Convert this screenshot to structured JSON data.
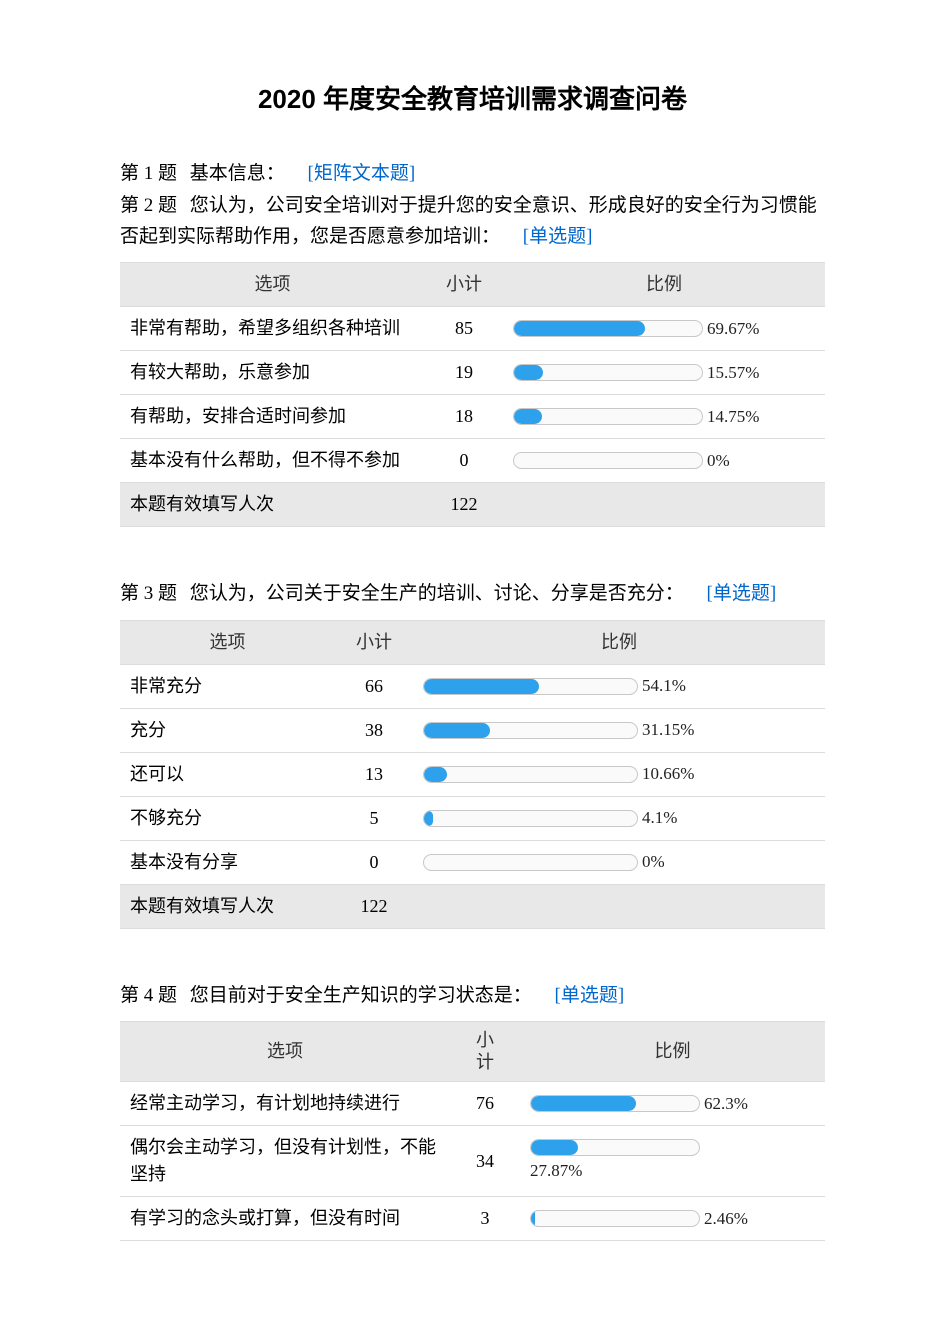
{
  "title": "2020 年度安全教育培训需求调查问卷",
  "type_link_color": "#0066cc",
  "bar_color": "#2ea1ed",
  "bar_track_bg": "#fafafa",
  "bar_border": "#c8c8c8",
  "header_bg": "#e8e8e8",
  "col_labels": {
    "option": "选项",
    "count": "小计",
    "ratio": "比例"
  },
  "footer_label": "本题有效填写人次",
  "q1": {
    "prefix": "第 1 题",
    "text": "基本信息：",
    "type": "[矩阵文本题]"
  },
  "q2": {
    "prefix": "第 2 题",
    "text": "您认为，公司安全培训对于提升您的安全意识、形成良好的安全行为习惯能否起到实际帮助作用，您是否愿意参加培训：",
    "type": "[单选题]",
    "total": "122",
    "track_width": 190,
    "rows": [
      {
        "label": "非常有帮助，希望多组织各种培训",
        "count": "85",
        "pct_label": "69.67%",
        "pct": 69.67
      },
      {
        "label": "有较大帮助，乐意参加",
        "count": "19",
        "pct_label": "15.57%",
        "pct": 15.57
      },
      {
        "label": "有帮助，安排合适时间参加",
        "count": "18",
        "pct_label": "14.75%",
        "pct": 14.75
      },
      {
        "label": "基本没有什么帮助，但不得不参加",
        "count": "0",
        "pct_label": "0%",
        "pct": 0
      }
    ]
  },
  "q3": {
    "prefix": "第 3 题",
    "text": "您认为，公司关于安全生产的培训、讨论、分享是否充分：",
    "type": "[单选题]",
    "total": "122",
    "track_width": 215,
    "rows": [
      {
        "label": "非常充分",
        "count": "66",
        "pct_label": "54.1%",
        "pct": 54.1
      },
      {
        "label": "充分",
        "count": "38",
        "pct_label": "31.15%",
        "pct": 31.15
      },
      {
        "label": "还可以",
        "count": "13",
        "pct_label": "10.66%",
        "pct": 10.66
      },
      {
        "label": "不够充分",
        "count": "5",
        "pct_label": "4.1%",
        "pct": 4.1
      },
      {
        "label": "基本没有分享",
        "count": "0",
        "pct_label": "0%",
        "pct": 0
      }
    ]
  },
  "q4": {
    "prefix": "第 4 题",
    "text": "您目前对于安全生产知识的学习状态是：",
    "type": "[单选题]",
    "count_header": "小计",
    "track_width": 170,
    "rows": [
      {
        "label": "经常主动学习，有计划地持续进行",
        "count": "76",
        "pct_label": "62.3%",
        "pct": 62.3,
        "label_below": false
      },
      {
        "label": "偶尔会主动学习，但没有计划性，不能坚持",
        "count": "34",
        "pct_label": "27.87%",
        "pct": 27.87,
        "label_below": true
      },
      {
        "label": "有学习的念头或打算，但没有时间",
        "count": "3",
        "pct_label": "2.46%",
        "pct": 2.46,
        "label_below": false
      }
    ]
  }
}
